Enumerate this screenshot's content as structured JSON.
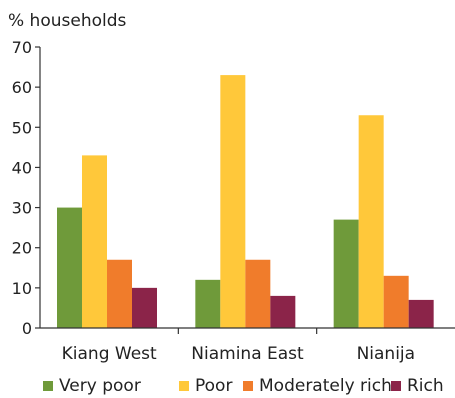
{
  "chart_data": {
    "type": "bar",
    "ylabel": "% households",
    "categories": [
      "Kiang West",
      "Niamina East",
      "Nianija"
    ],
    "ylim": [
      0,
      70
    ],
    "yticks": [
      0,
      10,
      20,
      30,
      40,
      50,
      60,
      70
    ],
    "grid": false,
    "legend_position": "bottom",
    "series": [
      {
        "name": "Very poor",
        "color": "#6f9a3a",
        "values": [
          30,
          12,
          27
        ]
      },
      {
        "name": "Poor",
        "color": "#ffc83a",
        "values": [
          43,
          63,
          53
        ]
      },
      {
        "name": "Moderately rich",
        "color": "#f07c2b",
        "values": [
          17,
          17,
          13
        ]
      },
      {
        "name": "Rich",
        "color": "#8b2449",
        "values": [
          10,
          8,
          7
        ]
      }
    ]
  }
}
